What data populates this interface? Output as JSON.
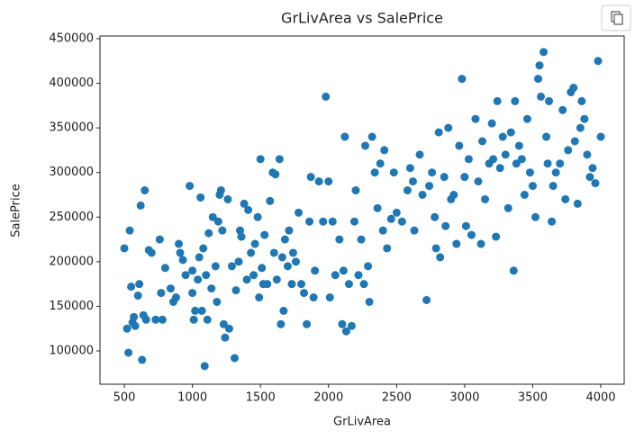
{
  "chart_data": {
    "type": "scatter",
    "title": "GrLivArea vs SalePrice",
    "x_label": "GrLivArea",
    "y_label": "SalePrice",
    "color": "#1f77b4",
    "x": [
      500,
      520,
      530,
      540,
      550,
      560,
      570,
      580,
      600,
      610,
      620,
      630,
      640,
      650,
      660,
      680,
      700,
      730,
      760,
      770,
      780,
      800,
      840,
      860,
      880,
      900,
      910,
      930,
      950,
      980,
      1000,
      1000,
      1010,
      1020,
      1040,
      1050,
      1060,
      1070,
      1080,
      1090,
      1100,
      1110,
      1120,
      1140,
      1150,
      1170,
      1180,
      1190,
      1200,
      1210,
      1220,
      1230,
      1240,
      1260,
      1270,
      1290,
      1310,
      1320,
      1340,
      1350,
      1360,
      1380,
      1400,
      1410,
      1430,
      1450,
      1460,
      1480,
      1490,
      1500,
      1510,
      1520,
      1530,
      1550,
      1570,
      1590,
      1600,
      1610,
      1620,
      1640,
      1650,
      1660,
      1670,
      1680,
      1700,
      1710,
      1730,
      1740,
      1760,
      1780,
      1800,
      1820,
      1840,
      1860,
      1870,
      1890,
      1900,
      1930,
      1960,
      1980,
      2000,
      2010,
      2030,
      2050,
      2080,
      2100,
      2110,
      2120,
      2130,
      2150,
      2170,
      2190,
      2200,
      2220,
      2240,
      2260,
      2270,
      2290,
      2300,
      2320,
      2340,
      2360,
      2380,
      2400,
      2410,
      2430,
      2460,
      2480,
      2500,
      2540,
      2580,
      2600,
      2620,
      2630,
      2670,
      2690,
      2720,
      2740,
      2760,
      2780,
      2790,
      2810,
      2820,
      2850,
      2860,
      2880,
      2900,
      2920,
      2940,
      2960,
      2980,
      3000,
      3010,
      3030,
      3050,
      3080,
      3100,
      3120,
      3130,
      3150,
      3180,
      3200,
      3210,
      3230,
      3240,
      3260,
      3280,
      3300,
      3320,
      3340,
      3360,
      3370,
      3380,
      3400,
      3420,
      3440,
      3460,
      3480,
      3500,
      3520,
      3540,
      3550,
      3560,
      3580,
      3600,
      3610,
      3620,
      3640,
      3650,
      3670,
      3700,
      3720,
      3740,
      3760,
      3780,
      3800,
      3810,
      3830,
      3850,
      3860,
      3880,
      3900,
      3920,
      3940,
      3960,
      3980,
      4000
    ],
    "values": [
      215000,
      125000,
      98000,
      235000,
      172000,
      132000,
      138000,
      128000,
      162000,
      175000,
      263000,
      90000,
      140000,
      280000,
      135000,
      213000,
      210000,
      135000,
      225000,
      165000,
      135000,
      193000,
      170000,
      155000,
      160000,
      220000,
      210000,
      202000,
      185000,
      285000,
      165000,
      190000,
      135000,
      145000,
      180000,
      205000,
      272000,
      145000,
      215000,
      83000,
      185000,
      135000,
      232000,
      170000,
      250000,
      195000,
      155000,
      245000,
      275000,
      280000,
      235000,
      130000,
      115000,
      270000,
      125000,
      195000,
      92000,
      168000,
      200000,
      235000,
      228000,
      265000,
      180000,
      258000,
      210000,
      185000,
      220000,
      250000,
      160000,
      315000,
      193000,
      175000,
      230000,
      175000,
      268000,
      300000,
      210000,
      298000,
      180000,
      315000,
      130000,
      205000,
      145000,
      225000,
      195000,
      235000,
      175000,
      210000,
      200000,
      255000,
      175000,
      165000,
      130000,
      245000,
      295000,
      160000,
      190000,
      290000,
      245000,
      385000,
      290000,
      160000,
      245000,
      185000,
      225000,
      130000,
      190000,
      340000,
      122000,
      175000,
      128000,
      245000,
      280000,
      185000,
      225000,
      175000,
      330000,
      195000,
      155000,
      340000,
      300000,
      260000,
      310000,
      235000,
      325000,
      215000,
      248000,
      300000,
      255000,
      245000,
      280000,
      305000,
      290000,
      235000,
      320000,
      275000,
      157000,
      285000,
      300000,
      250000,
      215000,
      345000,
      205000,
      295000,
      240000,
      350000,
      270000,
      275000,
      220000,
      330000,
      405000,
      295000,
      240000,
      315000,
      230000,
      360000,
      290000,
      220000,
      335000,
      270000,
      310000,
      355000,
      315000,
      228000,
      380000,
      305000,
      340000,
      320000,
      260000,
      345000,
      190000,
      380000,
      310000,
      330000,
      315000,
      275000,
      360000,
      300000,
      285000,
      250000,
      405000,
      420000,
      385000,
      435000,
      340000,
      310000,
      380000,
      245000,
      285000,
      300000,
      310000,
      370000,
      270000,
      325000,
      390000,
      395000,
      335000,
      265000,
      350000,
      380000,
      360000,
      320000,
      295000,
      305000,
      288000,
      425000,
      340000
    ],
    "xlim": [
      321,
      4172
    ],
    "ylim": [
      62700,
      453000
    ],
    "xticks": [
      500,
      1000,
      1500,
      2000,
      2500,
      3000,
      3500,
      4000
    ],
    "yticks": [
      100000,
      150000,
      200000,
      250000,
      300000,
      350000,
      400000,
      450000
    ]
  }
}
